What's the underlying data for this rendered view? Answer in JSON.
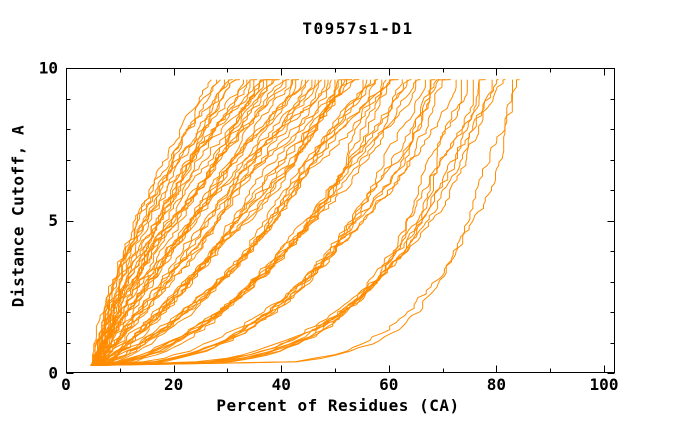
{
  "title": "T0957s1-D1",
  "axes": {
    "x": {
      "label": "Percent of Residues (CA)",
      "major_ticks": [
        0,
        20,
        40,
        60,
        80,
        100
      ],
      "major_labels": [
        "0",
        "20",
        "40",
        "60",
        "80",
        "100"
      ],
      "minor_ticks": [
        10,
        30,
        50,
        70,
        90
      ],
      "range_shown": [
        0,
        102
      ]
    },
    "y": {
      "label": "Distance Cutoff, A",
      "major_ticks": [
        0,
        5,
        10
      ],
      "major_labels": [
        "0",
        "5",
        "10"
      ],
      "minor_ticks": [
        1,
        2,
        3,
        4,
        6,
        7,
        8,
        9
      ],
      "range_shown": [
        0,
        10
      ]
    }
  },
  "colors": {
    "curve": "#FF8C00",
    "axis": "#000000",
    "text": "#000000",
    "background": "#FFFFFF"
  },
  "chart_data": {
    "type": "line",
    "title": "T0957s1-D1",
    "xlabel": "Percent of Residues (CA)",
    "ylabel": "Distance Cutoff, A",
    "xlim": [
      0,
      102
    ],
    "ylim": [
      0,
      10
    ],
    "grid": false,
    "legend": "none",
    "description": "Ensemble of ~76 overlapping cumulative accuracy curves (percent of CA residues under a distance cutoff) for predicted models of CASP target T0957s1-D1; all curves rise from about (x=5, y=0.25) to y=9.62, ending at x values spread between 27 and 84. Curves are drawn in orange with heavy overlap forming a hatched band from lower-left to upper-right.",
    "series_family": {
      "count": 76,
      "y_start": 0.25,
      "y_top": 9.62,
      "x_start_range": [
        4.5,
        6.5
      ],
      "shape_exponent_range": [
        0.17,
        1.6
      ],
      "top_end_x": [
        27,
        28,
        28.7,
        29.5,
        30.2,
        31,
        31.6,
        32.3,
        33,
        33.6,
        34.2,
        34.9,
        35.5,
        36.1,
        36.7,
        37.3,
        37.9,
        38.5,
        39.1,
        39.7,
        40.3,
        40.9,
        41.5,
        42.1,
        42.7,
        43.3,
        43.9,
        44.5,
        45.1,
        45.7,
        46.3,
        46.9,
        47.5,
        48.1,
        48.7,
        49.3,
        50,
        50.6,
        51.2,
        51.9,
        52.5,
        53.2,
        53.8,
        54.5,
        55.2,
        55.9,
        56.6,
        57.3,
        58,
        58.7,
        59.5,
        60.2,
        61,
        61.8,
        62.6,
        63.4,
        64.2,
        65,
        65.9,
        66.8,
        67.7,
        68.6,
        69.5,
        70.5,
        71.5,
        72.5,
        73.5,
        74.6,
        75.7,
        76.8,
        78,
        79.2,
        80.4,
        81.7,
        83,
        84.3
      ]
    }
  }
}
